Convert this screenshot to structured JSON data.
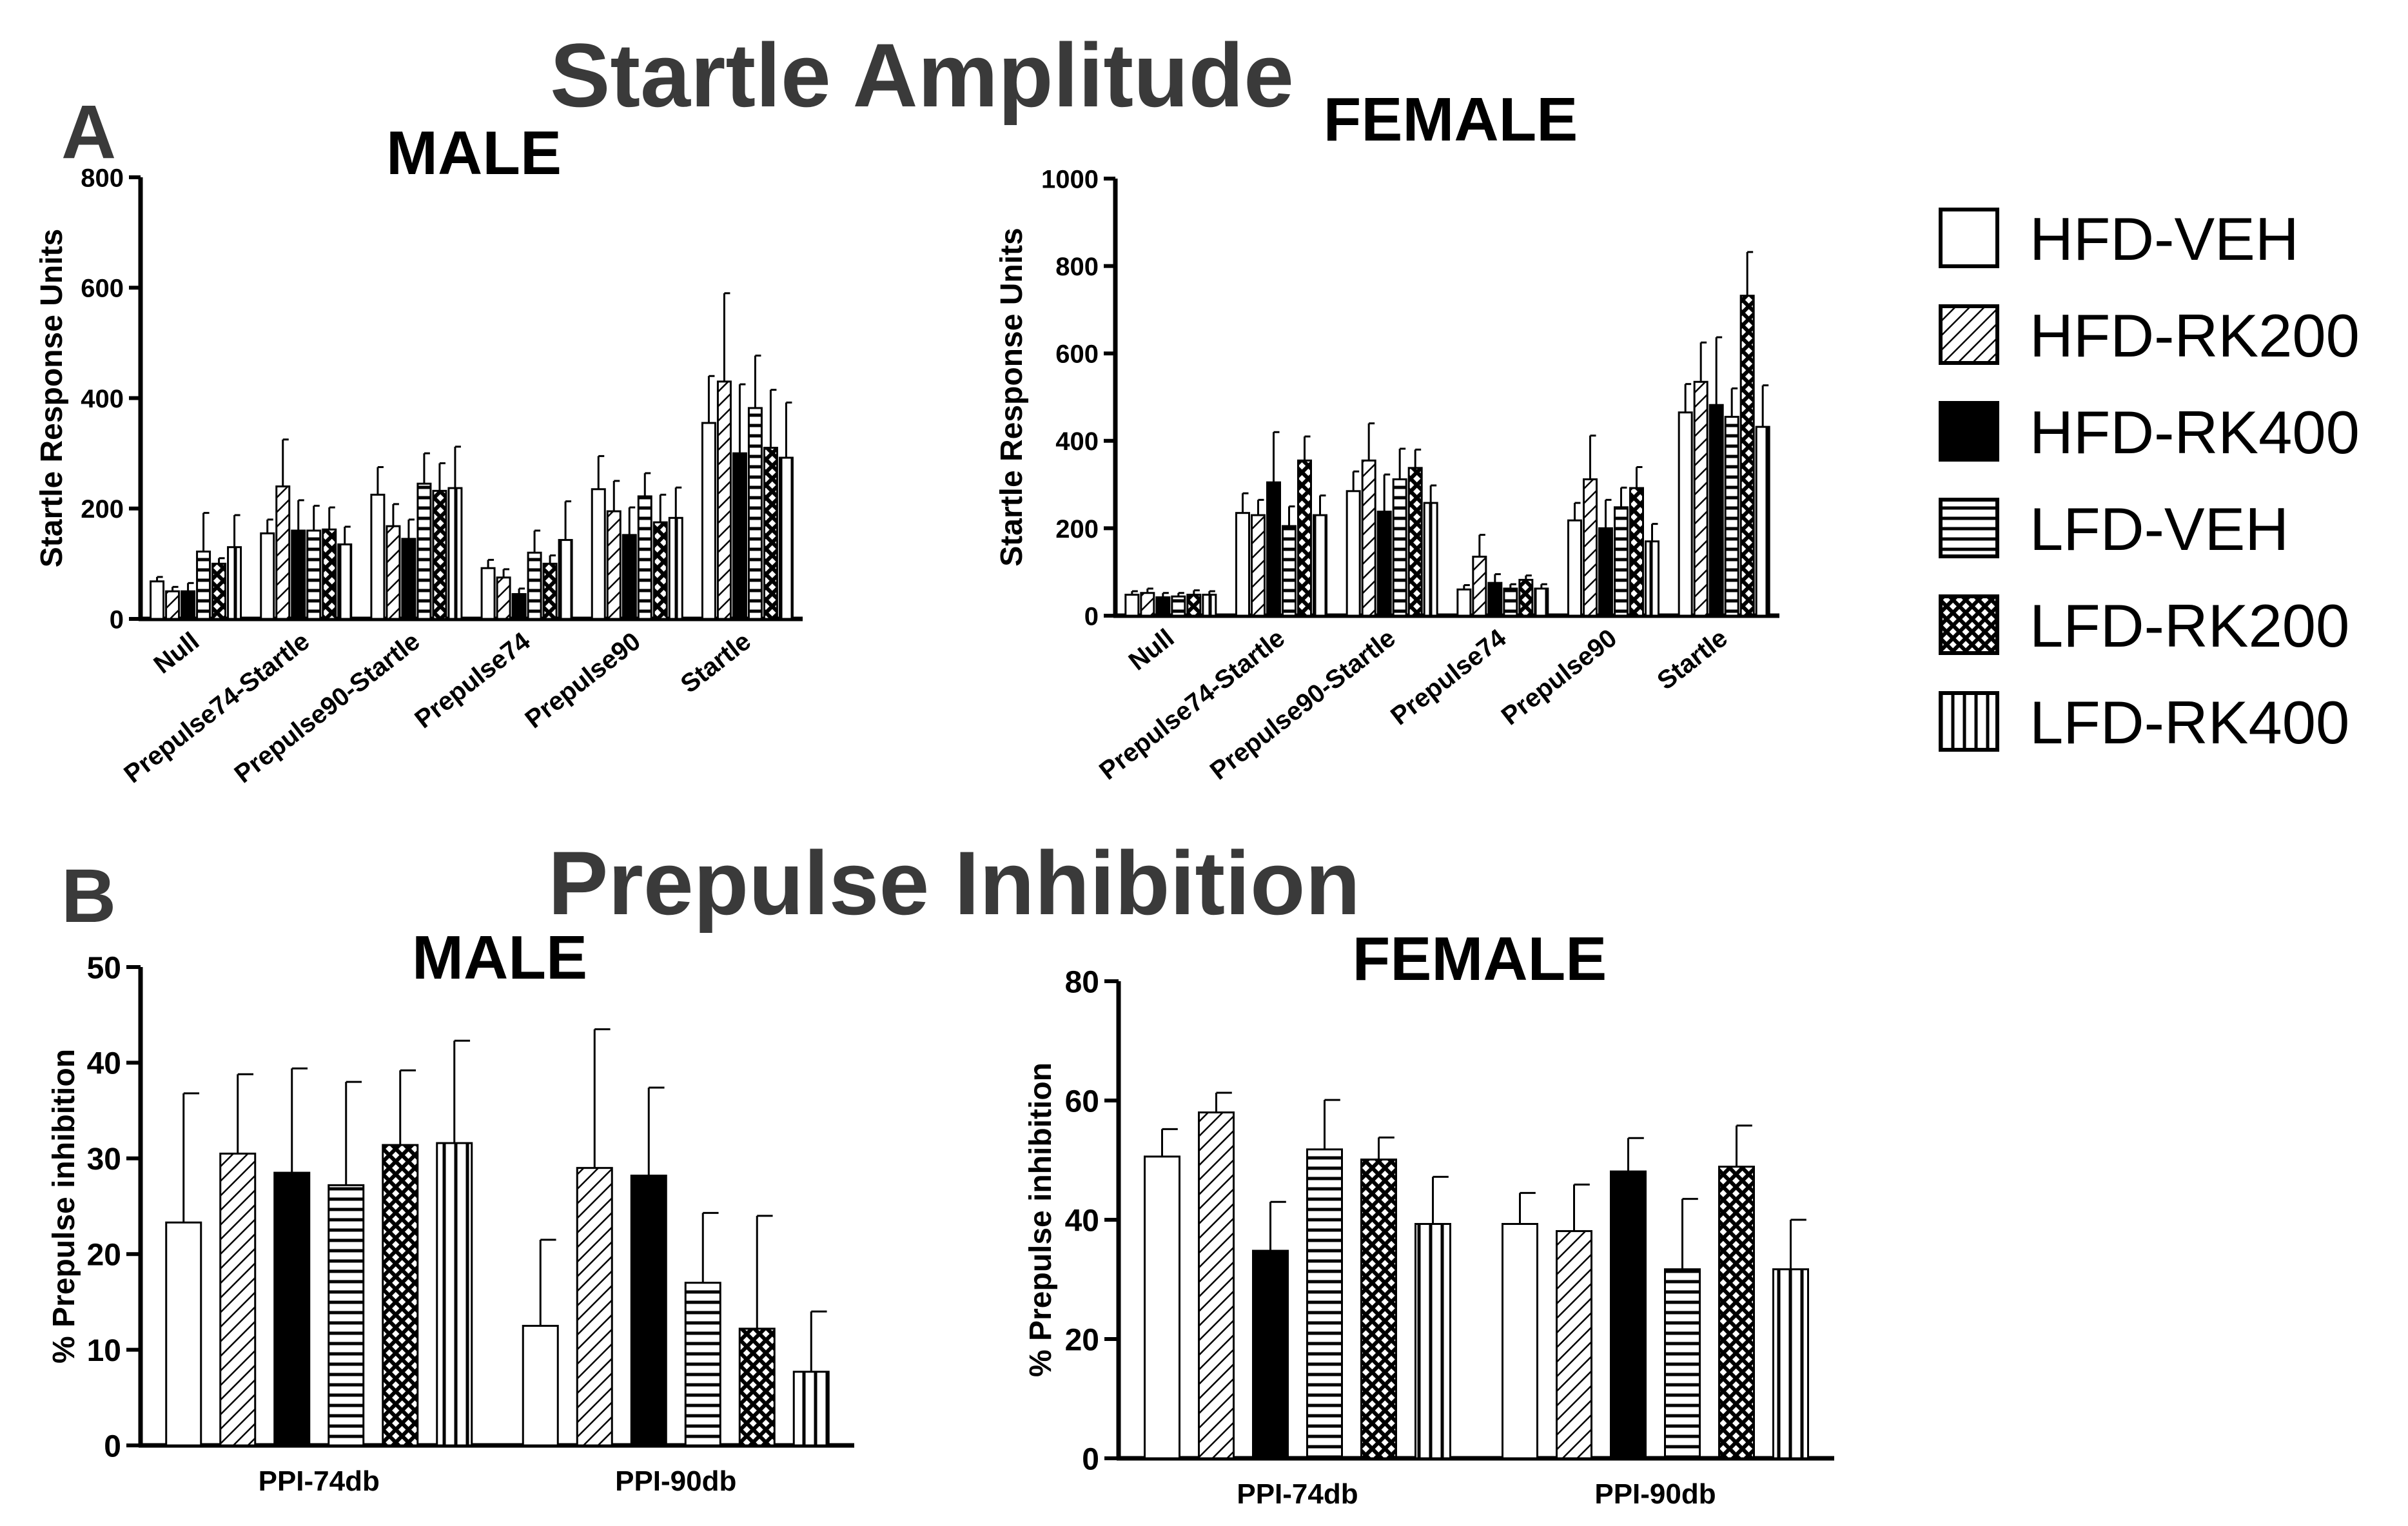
{
  "panels": {
    "a_letter": "A",
    "b_letter": "B",
    "a_title": "Startle Amplitude",
    "b_title": "Prepulse Inhibition"
  },
  "legend": {
    "items": [
      {
        "label": "HFD-VEH",
        "pattern": "open"
      },
      {
        "label": "HFD-RK200",
        "pattern": "diagonal"
      },
      {
        "label": "HFD-RK400",
        "pattern": "solid"
      },
      {
        "label": "LFD-VEH",
        "pattern": "horizontal"
      },
      {
        "label": "LFD-RK200",
        "pattern": "crosshatch"
      },
      {
        "label": "LFD-RK400",
        "pattern": "vertical"
      }
    ]
  },
  "chart_data": [
    {
      "type": "bar",
      "title": "MALE",
      "ylabel": "Startle Response Units",
      "ylim": [
        0,
        800
      ],
      "yticks": [
        0,
        200,
        400,
        600,
        800
      ],
      "categories": [
        "Null",
        "Prepulse74-Startle",
        "Prepulse90-Startle",
        "Prepulse74",
        "Prepulse90",
        "Startle"
      ],
      "series": [
        {
          "name": "HFD-VEH",
          "values": [
            68,
            155,
            225,
            92,
            235,
            355
          ],
          "errors": [
            8,
            25,
            50,
            15,
            60,
            85
          ]
        },
        {
          "name": "HFD-RK200",
          "values": [
            50,
            240,
            168,
            75,
            195,
            430
          ],
          "errors": [
            8,
            85,
            40,
            15,
            55,
            160
          ]
        },
        {
          "name": "HFD-RK400",
          "values": [
            50,
            160,
            145,
            45,
            152,
            300
          ],
          "errors": [
            15,
            55,
            35,
            10,
            50,
            125
          ]
        },
        {
          "name": "LFD-VEH",
          "values": [
            122,
            160,
            245,
            120,
            222,
            382
          ],
          "errors": [
            70,
            45,
            55,
            40,
            42,
            95
          ]
        },
        {
          "name": "LFD-RK200",
          "values": [
            100,
            162,
            232,
            100,
            175,
            310
          ],
          "errors": [
            10,
            40,
            50,
            15,
            50,
            105
          ]
        },
        {
          "name": "LFD-RK400",
          "values": [
            130,
            135,
            237,
            143,
            183,
            292
          ],
          "errors": [
            58,
            32,
            75,
            70,
            55,
            100
          ]
        }
      ]
    },
    {
      "type": "bar",
      "title": "FEMALE",
      "ylabel": "Startle Response Units",
      "ylim": [
        0,
        1000
      ],
      "yticks": [
        0,
        200,
        400,
        600,
        800,
        1000
      ],
      "categories": [
        "Null",
        "Prepulse74-Startle",
        "Prepulse90-Startle",
        "Prepulse74",
        "Prepulse90",
        "Startle"
      ],
      "series": [
        {
          "name": "HFD-VEH",
          "values": [
            48,
            235,
            285,
            60,
            218,
            465
          ],
          "errors": [
            8,
            45,
            45,
            10,
            40,
            65
          ]
        },
        {
          "name": "HFD-RK200",
          "values": [
            52,
            230,
            355,
            135,
            312,
            535
          ],
          "errors": [
            10,
            35,
            85,
            50,
            100,
            90
          ]
        },
        {
          "name": "HFD-RK400",
          "values": [
            42,
            305,
            238,
            75,
            200,
            482
          ],
          "errors": [
            10,
            115,
            85,
            20,
            65,
            155
          ]
        },
        {
          "name": "LFD-VEH",
          "values": [
            44,
            205,
            312,
            62,
            248,
            455
          ],
          "errors": [
            8,
            45,
            70,
            10,
            45,
            65
          ]
        },
        {
          "name": "LFD-RK200",
          "values": [
            48,
            355,
            338,
            82,
            292,
            732
          ],
          "errors": [
            10,
            55,
            42,
            10,
            48,
            100
          ]
        },
        {
          "name": "LFD-RK400",
          "values": [
            48,
            230,
            258,
            62,
            170,
            432
          ],
          "errors": [
            8,
            45,
            40,
            10,
            40,
            95
          ]
        }
      ]
    },
    {
      "type": "bar",
      "title": "MALE",
      "ylabel": "% Prepulse inhibition",
      "ylim": [
        0,
        50
      ],
      "yticks": [
        0,
        10,
        20,
        30,
        40,
        50
      ],
      "categories": [
        "PPI-74db",
        "PPI-90db"
      ],
      "series": [
        {
          "name": "HFD-VEH",
          "values": [
            23.3,
            12.5
          ],
          "errors": [
            13.5,
            9
          ]
        },
        {
          "name": "HFD-RK200",
          "values": [
            30.5,
            29
          ],
          "errors": [
            8.3,
            14.5
          ]
        },
        {
          "name": "HFD-RK400",
          "values": [
            28.5,
            28.2
          ],
          "errors": [
            10.9,
            9.2
          ]
        },
        {
          "name": "LFD-VEH",
          "values": [
            27.2,
            17
          ],
          "errors": [
            10.8,
            7.3
          ]
        },
        {
          "name": "LFD-RK200",
          "values": [
            31.4,
            12.2
          ],
          "errors": [
            7.8,
            11.8
          ]
        },
        {
          "name": "LFD-RK400",
          "values": [
            31.6,
            7.7
          ],
          "errors": [
            10.7,
            6.3
          ]
        }
      ]
    },
    {
      "type": "bar",
      "title": "FEMALE",
      "ylabel": "% Prepulse inhibition",
      "ylim": [
        0,
        80
      ],
      "yticks": [
        0,
        20,
        40,
        60,
        80
      ],
      "categories": [
        "PPI-74db",
        "PPI-90db"
      ],
      "series": [
        {
          "name": "HFD-VEH",
          "values": [
            50.6,
            39.3
          ],
          "errors": [
            4.6,
            5.2
          ]
        },
        {
          "name": "HFD-RK200",
          "values": [
            58,
            38.1
          ],
          "errors": [
            3.3,
            7.8
          ]
        },
        {
          "name": "HFD-RK400",
          "values": [
            34.8,
            48.1
          ],
          "errors": [
            8.2,
            5.6
          ]
        },
        {
          "name": "LFD-VEH",
          "values": [
            51.8,
            31.7
          ],
          "errors": [
            8.3,
            11.8
          ]
        },
        {
          "name": "LFD-RK200",
          "values": [
            50.1,
            48.9
          ],
          "errors": [
            3.7,
            6.9
          ]
        },
        {
          "name": "LFD-RK400",
          "values": [
            39.3,
            31.7
          ],
          "errors": [
            7.9,
            8.3
          ]
        }
      ]
    }
  ]
}
